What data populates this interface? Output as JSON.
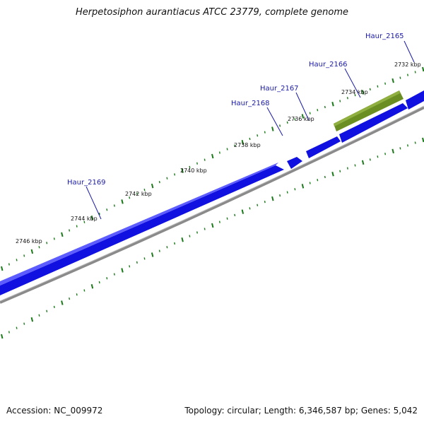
{
  "title": "Herpetosiphon aurantiacus ATCC 23779, complete genome",
  "footer": {
    "accession": "Accession: NC_009972",
    "summary": "Topology: circular; Length: 6,346,587 bp; Genes: 5,042"
  },
  "colors": {
    "gene_forward": "#1010e0",
    "gene_highlight": "#6b8e23",
    "backbone": "#8a8a8a",
    "tick": "#1a7a1a",
    "gene_label": "#1a1aa6"
  },
  "kbp_labels": [
    "2732 kbp",
    "2734 kbp",
    "2736 kbp",
    "2738 kbp",
    "2740 kbp",
    "2742 kbp",
    "2744 kbp",
    "2746 kbp"
  ],
  "gene_labels": [
    "Haur_2165",
    "Haur_2166",
    "Haur_2167",
    "Haur_2168",
    "Haur_2169"
  ]
}
